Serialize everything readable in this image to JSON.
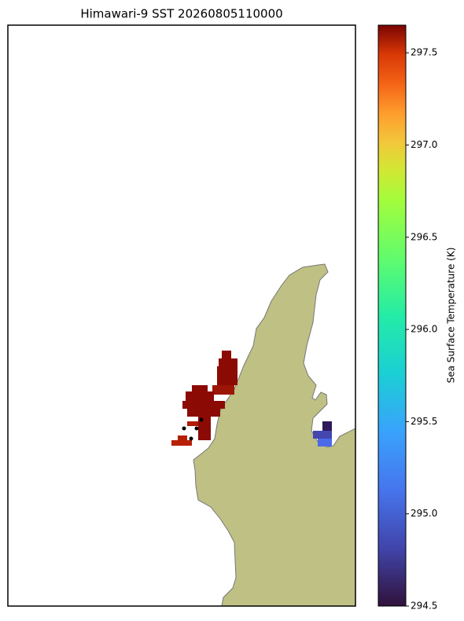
{
  "title": "Himawari-9 SST 20260805110000",
  "colorbar": {
    "label": "Sea Surface Temperature (K)",
    "lim": [
      294.5,
      297.65
    ],
    "ticks": [
      294.5,
      {
        "value": 295.0,
        "label": "295.0"
      },
      295.5,
      {
        "value": 296.0,
        "label": "296.0"
      },
      296.5,
      {
        "value": 297.0,
        "label": "297.0"
      },
      297.5
    ]
  }
}
